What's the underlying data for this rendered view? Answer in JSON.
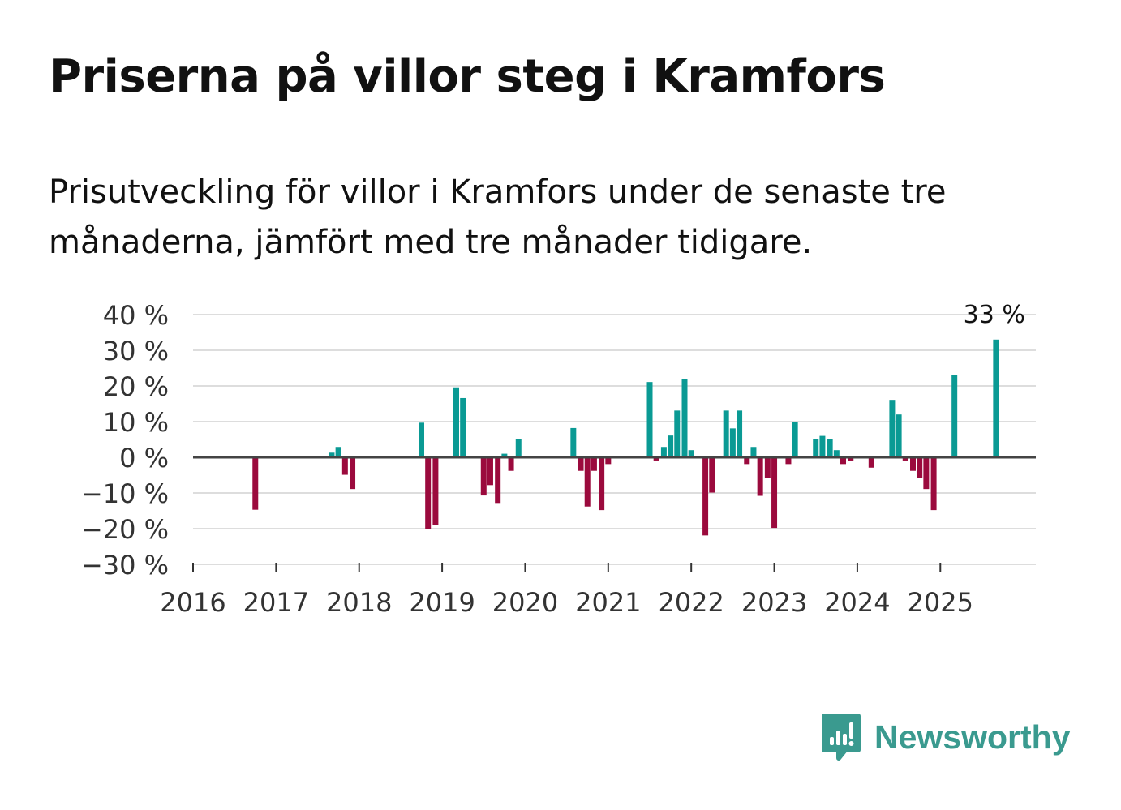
{
  "title": "Priserna på villor steg i Kramfors",
  "subtitle": "Prisutveckling för villor i Kramfors under de senaste tre månaderna, jämfört med tre månader tidigare.",
  "brand": {
    "name": "Newsworthy",
    "icon": "newsworthy-logo-icon",
    "color": "#3a9a8f"
  },
  "colors": {
    "positive": "#0a9a94",
    "negative": "#9b0a3d",
    "grid": "#dddddd",
    "zero": "#444444"
  },
  "chart_data": {
    "type": "bar",
    "title": "Priserna på villor steg i Kramfors",
    "xlabel": "",
    "ylabel": "",
    "ylim": [
      -30,
      40
    ],
    "yticks": [
      -30,
      -20,
      -10,
      0,
      10,
      20,
      30,
      40
    ],
    "ytick_labels": [
      "−30 %",
      "−20 %",
      "−10 %",
      "0 %",
      "10 %",
      "20 %",
      "30 %",
      "40 %"
    ],
    "xlim": [
      2016,
      2026.15
    ],
    "xticks": [
      2016,
      2017,
      2018,
      2019,
      2020,
      2021,
      2022,
      2023,
      2024,
      2025
    ],
    "xtick_labels": [
      "2016",
      "2017",
      "2018",
      "2019",
      "2020",
      "2021",
      "2022",
      "2023",
      "2024",
      "2025"
    ],
    "annotation": {
      "label": "33 %",
      "value": 33
    },
    "series": [
      {
        "name": "Prisutveckling",
        "points": [
          {
            "x": 2016.75,
            "y": -14.7
          },
          {
            "x": 2017.67,
            "y": 1.3
          },
          {
            "x": 2017.75,
            "y": 2.9
          },
          {
            "x": 2017.83,
            "y": -4.9
          },
          {
            "x": 2017.92,
            "y": -8.9
          },
          {
            "x": 2018.75,
            "y": 9.7
          },
          {
            "x": 2018.83,
            "y": -20.2
          },
          {
            "x": 2018.92,
            "y": -18.9
          },
          {
            "x": 2019.17,
            "y": 19.6
          },
          {
            "x": 2019.25,
            "y": 16.6
          },
          {
            "x": 2019.5,
            "y": -10.7
          },
          {
            "x": 2019.58,
            "y": -7.8
          },
          {
            "x": 2019.67,
            "y": -12.8
          },
          {
            "x": 2019.75,
            "y": 1.0
          },
          {
            "x": 2019.83,
            "y": -3.8
          },
          {
            "x": 2019.92,
            "y": 5.0
          },
          {
            "x": 2020.58,
            "y": 8.2
          },
          {
            "x": 2020.67,
            "y": -3.8
          },
          {
            "x": 2020.75,
            "y": -13.8
          },
          {
            "x": 2020.83,
            "y": -3.8
          },
          {
            "x": 2020.92,
            "y": -14.8
          },
          {
            "x": 2021.0,
            "y": -1.9
          },
          {
            "x": 2021.5,
            "y": 21.1
          },
          {
            "x": 2021.58,
            "y": -0.9
          },
          {
            "x": 2021.67,
            "y": 2.9
          },
          {
            "x": 2021.75,
            "y": 6.1
          },
          {
            "x": 2021.83,
            "y": 13.1
          },
          {
            "x": 2021.92,
            "y": 22.0
          },
          {
            "x": 2022.0,
            "y": 2.0
          },
          {
            "x": 2022.17,
            "y": -21.9
          },
          {
            "x": 2022.25,
            "y": -9.9
          },
          {
            "x": 2022.42,
            "y": 13.1
          },
          {
            "x": 2022.5,
            "y": 8.1
          },
          {
            "x": 2022.58,
            "y": 13.1
          },
          {
            "x": 2022.67,
            "y": -1.9
          },
          {
            "x": 2022.75,
            "y": 2.9
          },
          {
            "x": 2022.83,
            "y": -10.8
          },
          {
            "x": 2022.92,
            "y": -5.8
          },
          {
            "x": 2023.0,
            "y": -19.8
          },
          {
            "x": 2023.17,
            "y": -1.9
          },
          {
            "x": 2023.25,
            "y": 10.0
          },
          {
            "x": 2023.5,
            "y": 5.0
          },
          {
            "x": 2023.58,
            "y": 6.0
          },
          {
            "x": 2023.67,
            "y": 5.0
          },
          {
            "x": 2023.75,
            "y": 2.0
          },
          {
            "x": 2023.83,
            "y": -1.9
          },
          {
            "x": 2023.92,
            "y": -0.9
          },
          {
            "x": 2024.17,
            "y": -2.9
          },
          {
            "x": 2024.42,
            "y": 16.1
          },
          {
            "x": 2024.5,
            "y": 12.0
          },
          {
            "x": 2024.58,
            "y": -0.9
          },
          {
            "x": 2024.67,
            "y": -3.8
          },
          {
            "x": 2024.75,
            "y": -5.8
          },
          {
            "x": 2024.83,
            "y": -8.9
          },
          {
            "x": 2024.92,
            "y": -14.8
          },
          {
            "x": 2025.17,
            "y": 23.1
          },
          {
            "x": 2025.67,
            "y": 33.0
          }
        ]
      }
    ]
  }
}
